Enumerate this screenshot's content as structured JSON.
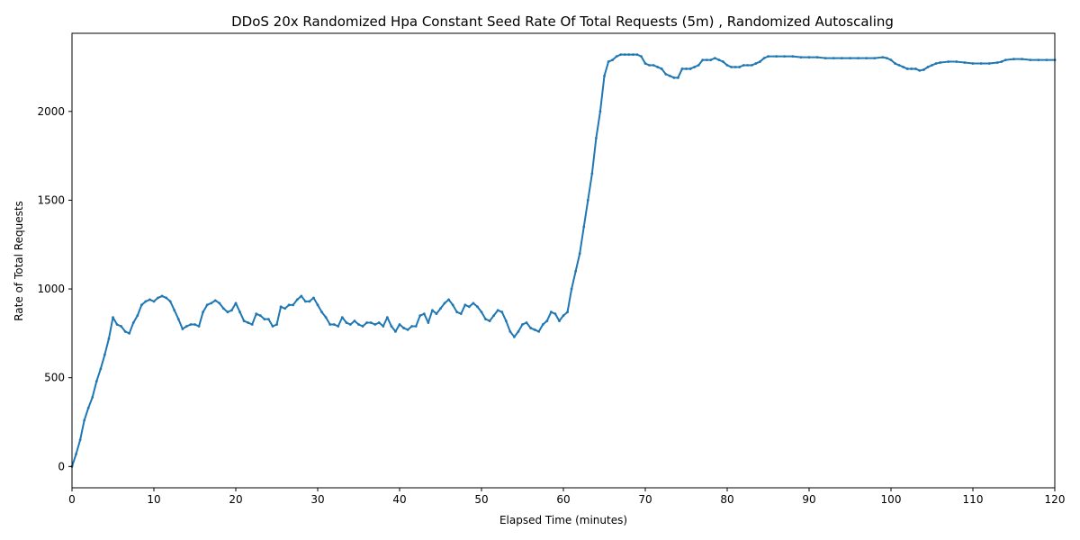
{
  "chart_data": {
    "type": "line",
    "title": "DDoS 20x Randomized Hpa Constant Seed Rate Of Total Requests (5m) , Randomized Autoscaling",
    "xlabel": "Elapsed Time (minutes)",
    "ylabel": "Rate of Total Requests",
    "xlim": [
      0,
      120
    ],
    "ylim": [
      -120,
      2440
    ],
    "x_ticks": [
      0,
      10,
      20,
      30,
      40,
      50,
      60,
      70,
      80,
      90,
      100,
      110,
      120
    ],
    "y_ticks": [
      0,
      500,
      1000,
      1500,
      2000
    ],
    "grid": false,
    "series": [
      {
        "color": "#1f77b4",
        "points": [
          [
            0,
            0
          ],
          [
            0.5,
            70
          ],
          [
            1,
            150
          ],
          [
            1.5,
            260
          ],
          [
            2,
            330
          ],
          [
            2.5,
            390
          ],
          [
            3,
            480
          ],
          [
            3.5,
            550
          ],
          [
            4,
            630
          ],
          [
            4.5,
            720
          ],
          [
            5,
            840
          ],
          [
            5.5,
            800
          ],
          [
            6,
            790
          ],
          [
            6.5,
            760
          ],
          [
            7,
            750
          ],
          [
            7.5,
            810
          ],
          [
            8,
            850
          ],
          [
            8.5,
            910
          ],
          [
            9,
            930
          ],
          [
            9.5,
            940
          ],
          [
            10,
            930
          ],
          [
            10.5,
            950
          ],
          [
            11,
            960
          ],
          [
            11.5,
            950
          ],
          [
            12,
            930
          ],
          [
            12.5,
            880
          ],
          [
            13,
            830
          ],
          [
            13.5,
            775
          ],
          [
            14,
            790
          ],
          [
            14.5,
            800
          ],
          [
            15,
            800
          ],
          [
            15.5,
            790
          ],
          [
            16,
            870
          ],
          [
            16.5,
            910
          ],
          [
            17,
            920
          ],
          [
            17.5,
            935
          ],
          [
            18,
            920
          ],
          [
            18.5,
            890
          ],
          [
            19,
            870
          ],
          [
            19.5,
            880
          ],
          [
            20,
            920
          ],
          [
            20.5,
            870
          ],
          [
            21,
            820
          ],
          [
            21.5,
            810
          ],
          [
            22,
            800
          ],
          [
            22.5,
            860
          ],
          [
            23,
            850
          ],
          [
            23.5,
            830
          ],
          [
            24,
            830
          ],
          [
            24.5,
            790
          ],
          [
            25,
            800
          ],
          [
            25.5,
            900
          ],
          [
            26,
            890
          ],
          [
            26.5,
            910
          ],
          [
            27,
            910
          ],
          [
            27.5,
            940
          ],
          [
            28,
            960
          ],
          [
            28.5,
            930
          ],
          [
            29,
            930
          ],
          [
            29.5,
            950
          ],
          [
            30,
            910
          ],
          [
            30.5,
            870
          ],
          [
            31,
            840
          ],
          [
            31.5,
            800
          ],
          [
            32,
            800
          ],
          [
            32.5,
            790
          ],
          [
            33,
            840
          ],
          [
            33.5,
            810
          ],
          [
            34,
            800
          ],
          [
            34.5,
            820
          ],
          [
            35,
            800
          ],
          [
            35.5,
            790
          ],
          [
            36,
            810
          ],
          [
            36.5,
            810
          ],
          [
            37,
            800
          ],
          [
            37.5,
            810
          ],
          [
            38,
            790
          ],
          [
            38.5,
            840
          ],
          [
            39,
            790
          ],
          [
            39.5,
            760
          ],
          [
            40,
            800
          ],
          [
            40.5,
            780
          ],
          [
            41,
            770
          ],
          [
            41.5,
            790
          ],
          [
            42,
            790
          ],
          [
            42.5,
            850
          ],
          [
            43,
            860
          ],
          [
            43.5,
            810
          ],
          [
            44,
            880
          ],
          [
            44.5,
            860
          ],
          [
            45,
            890
          ],
          [
            45.5,
            920
          ],
          [
            46,
            940
          ],
          [
            46.5,
            910
          ],
          [
            47,
            870
          ],
          [
            47.5,
            860
          ],
          [
            48,
            910
          ],
          [
            48.5,
            900
          ],
          [
            49,
            920
          ],
          [
            49.5,
            900
          ],
          [
            50,
            870
          ],
          [
            50.5,
            830
          ],
          [
            51,
            820
          ],
          [
            51.5,
            850
          ],
          [
            52,
            880
          ],
          [
            52.5,
            870
          ],
          [
            53,
            820
          ],
          [
            53.5,
            760
          ],
          [
            54,
            730
          ],
          [
            54.5,
            760
          ],
          [
            55,
            800
          ],
          [
            55.5,
            810
          ],
          [
            56,
            780
          ],
          [
            56.5,
            770
          ],
          [
            57,
            760
          ],
          [
            57.5,
            800
          ],
          [
            58,
            820
          ],
          [
            58.5,
            870
          ],
          [
            59,
            860
          ],
          [
            59.5,
            820
          ],
          [
            60,
            850
          ],
          [
            60.5,
            870
          ],
          [
            61,
            1000
          ],
          [
            61.5,
            1100
          ],
          [
            62,
            1200
          ],
          [
            62.5,
            1350
          ],
          [
            63,
            1500
          ],
          [
            63.5,
            1650
          ],
          [
            64,
            1850
          ],
          [
            64.5,
            2000
          ],
          [
            65,
            2200
          ],
          [
            65.5,
            2280
          ],
          [
            66,
            2290
          ],
          [
            66.5,
            2310
          ],
          [
            67,
            2320
          ],
          [
            67.5,
            2320
          ],
          [
            68,
            2320
          ],
          [
            68.5,
            2320
          ],
          [
            69,
            2320
          ],
          [
            69.5,
            2310
          ],
          [
            70,
            2270
          ],
          [
            70.5,
            2260
          ],
          [
            71,
            2260
          ],
          [
            71.5,
            2250
          ],
          [
            72,
            2240
          ],
          [
            72.5,
            2210
          ],
          [
            73,
            2200
          ],
          [
            73.5,
            2190
          ],
          [
            74,
            2190
          ],
          [
            74.5,
            2240
          ],
          [
            75,
            2240
          ],
          [
            75.5,
            2240
          ],
          [
            76,
            2250
          ],
          [
            76.5,
            2260
          ],
          [
            77,
            2290
          ],
          [
            77.5,
            2290
          ],
          [
            78,
            2290
          ],
          [
            78.5,
            2300
          ],
          [
            79,
            2290
          ],
          [
            79.5,
            2280
          ],
          [
            80,
            2260
          ],
          [
            80.5,
            2250
          ],
          [
            81,
            2250
          ],
          [
            81.5,
            2250
          ],
          [
            82,
            2260
          ],
          [
            82.5,
            2260
          ],
          [
            83,
            2260
          ],
          [
            83.5,
            2270
          ],
          [
            84,
            2280
          ],
          [
            84.5,
            2300
          ],
          [
            85,
            2310
          ],
          [
            86,
            2310
          ],
          [
            87,
            2310
          ],
          [
            88,
            2310
          ],
          [
            89,
            2305
          ],
          [
            90,
            2305
          ],
          [
            91,
            2305
          ],
          [
            92,
            2300
          ],
          [
            93,
            2300
          ],
          [
            94,
            2300
          ],
          [
            95,
            2300
          ],
          [
            96,
            2300
          ],
          [
            97,
            2300
          ],
          [
            98,
            2300
          ],
          [
            99,
            2305
          ],
          [
            99.5,
            2300
          ],
          [
            100,
            2290
          ],
          [
            100.5,
            2270
          ],
          [
            101,
            2260
          ],
          [
            101.5,
            2250
          ],
          [
            102,
            2240
          ],
          [
            102.5,
            2240
          ],
          [
            103,
            2240
          ],
          [
            103.5,
            2230
          ],
          [
            104,
            2235
          ],
          [
            104.5,
            2250
          ],
          [
            105,
            2260
          ],
          [
            105.5,
            2270
          ],
          [
            106,
            2275
          ],
          [
            107,
            2280
          ],
          [
            108,
            2280
          ],
          [
            109,
            2275
          ],
          [
            110,
            2270
          ],
          [
            111,
            2270
          ],
          [
            112,
            2270
          ],
          [
            113,
            2275
          ],
          [
            113.5,
            2280
          ],
          [
            114,
            2290
          ],
          [
            115,
            2295
          ],
          [
            116,
            2295
          ],
          [
            117,
            2290
          ],
          [
            118,
            2290
          ],
          [
            119,
            2290
          ],
          [
            120,
            2290
          ]
        ]
      }
    ]
  }
}
